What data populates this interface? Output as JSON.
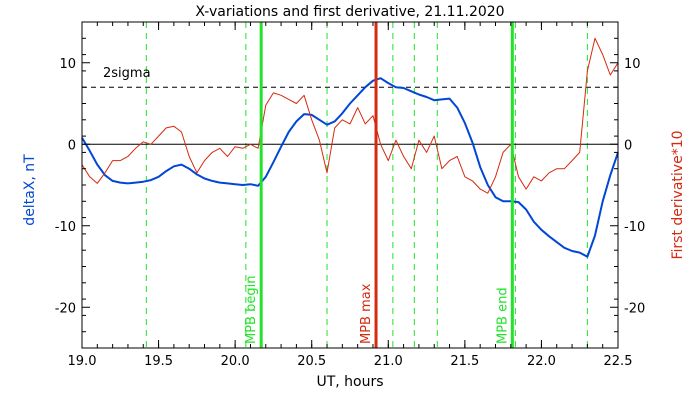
{
  "chart_data": {
    "type": "line",
    "title": "X-variations and first derivative, 21.11.2020",
    "xlabel": "UT, hours",
    "ylabel_left": "deltaX, nT",
    "ylabel_right": "First derivative*10",
    "xlim": [
      19.0,
      22.5
    ],
    "ylim": [
      -25,
      15
    ],
    "xticks": [
      "19.0",
      "19.5",
      "20.0",
      "20.5",
      "21.0",
      "21.5",
      "22.0",
      "22.5"
    ],
    "xtick_values": [
      19.0,
      19.5,
      20.0,
      20.5,
      21.0,
      21.5,
      22.0,
      22.5
    ],
    "yticks_left": [
      "-20",
      "-10",
      "0",
      "10"
    ],
    "yticks_right": [
      "-20",
      "-10",
      "0",
      "10"
    ],
    "ytick_values": [
      -20,
      -10,
      0,
      10
    ],
    "sigma_label": "2sigma",
    "sigma_level": 7,
    "zero_level": 0,
    "colors": {
      "deltaX": "#0047d6",
      "derivative": "#d52a10",
      "green": "#22e22a",
      "red": "#d52a10",
      "axis": "#000000"
    },
    "series": [
      {
        "name": "deltaX, nT",
        "x": [
          19.0,
          19.05,
          19.1,
          19.15,
          19.2,
          19.25,
          19.3,
          19.35,
          19.4,
          19.45,
          19.5,
          19.55,
          19.6,
          19.65,
          19.7,
          19.75,
          19.8,
          19.85,
          19.9,
          19.95,
          20.0,
          20.05,
          20.1,
          20.15,
          20.2,
          20.25,
          20.3,
          20.35,
          20.4,
          20.45,
          20.5,
          20.55,
          20.6,
          20.65,
          20.7,
          20.75,
          20.8,
          20.85,
          20.9,
          20.95,
          21.0,
          21.05,
          21.1,
          21.15,
          21.2,
          21.25,
          21.3,
          21.35,
          21.4,
          21.45,
          21.5,
          21.55,
          21.6,
          21.65,
          21.7,
          21.75,
          21.8,
          21.85,
          21.9,
          21.95,
          22.0,
          22.05,
          22.1,
          22.15,
          22.2,
          22.25,
          22.3,
          22.35,
          22.4,
          22.45,
          22.5
        ],
        "values": [
          0.8,
          -0.8,
          -2.5,
          -3.8,
          -4.5,
          -4.7,
          -4.8,
          -4.7,
          -4.6,
          -4.4,
          -4.0,
          -3.3,
          -2.7,
          -2.5,
          -3.0,
          -3.7,
          -4.2,
          -4.5,
          -4.7,
          -4.8,
          -4.9,
          -5.0,
          -4.9,
          -5.1,
          -4.0,
          -2.2,
          -0.3,
          1.5,
          2.8,
          3.7,
          3.6,
          3.0,
          2.4,
          2.8,
          3.8,
          5.0,
          6.0,
          7.0,
          7.8,
          8.1,
          7.5,
          7.0,
          6.9,
          6.5,
          6.1,
          5.8,
          5.4,
          5.5,
          5.6,
          4.5,
          2.6,
          0.2,
          -2.8,
          -5.0,
          -6.5,
          -7.0,
          -7.0,
          -7.1,
          -8.0,
          -9.5,
          -10.5,
          -11.3,
          -12.0,
          -12.7,
          -13.1,
          -13.3,
          -13.8,
          -11.2,
          -7.0,
          -3.8,
          -1.0
        ]
      },
      {
        "name": "First derivative*10",
        "x": [
          19.0,
          19.05,
          19.1,
          19.15,
          19.2,
          19.25,
          19.3,
          19.35,
          19.4,
          19.45,
          19.5,
          19.55,
          19.6,
          19.65,
          19.7,
          19.75,
          19.8,
          19.85,
          19.9,
          19.95,
          20.0,
          20.05,
          20.1,
          20.15,
          20.2,
          20.25,
          20.3,
          20.35,
          20.4,
          20.45,
          20.5,
          20.55,
          20.6,
          20.65,
          20.7,
          20.75,
          20.8,
          20.85,
          20.9,
          20.95,
          21.0,
          21.05,
          21.1,
          21.15,
          21.2,
          21.25,
          21.3,
          21.35,
          21.4,
          21.45,
          21.5,
          21.55,
          21.6,
          21.65,
          21.7,
          21.75,
          21.8,
          21.85,
          21.9,
          21.95,
          22.0,
          22.05,
          22.1,
          22.15,
          22.2,
          22.25,
          22.3,
          22.35,
          22.4,
          22.45,
          22.5
        ],
        "values": [
          -2.5,
          -4.0,
          -4.8,
          -3.5,
          -2.0,
          -2.0,
          -1.5,
          -0.5,
          0.3,
          0.0,
          1.0,
          2.0,
          2.2,
          1.5,
          -1.5,
          -3.5,
          -2.0,
          -1.0,
          -0.5,
          -1.5,
          -0.3,
          -0.5,
          0.0,
          -0.5,
          4.8,
          6.3,
          6.0,
          5.5,
          5.0,
          6.0,
          3.0,
          0.5,
          -3.5,
          2.0,
          3.0,
          2.5,
          4.5,
          2.5,
          3.5,
          0.0,
          -2.0,
          0.5,
          -1.5,
          -3.0,
          0.5,
          -1.0,
          1.0,
          -3.0,
          -2.0,
          -1.5,
          -4.0,
          -4.5,
          -5.5,
          -6.0,
          -4.0,
          -1.0,
          0.0,
          -4.0,
          -5.5,
          -4.0,
          -4.5,
          -3.5,
          -3.0,
          -3.0,
          -2.0,
          -1.0,
          9.0,
          13.0,
          11.0,
          8.5,
          10.0
        ]
      }
    ],
    "vertical_lines": {
      "dashed_green": [
        19.42,
        20.07,
        20.6,
        21.03,
        21.17,
        21.32,
        21.83,
        22.3
      ],
      "solid": [
        {
          "x": 20.17,
          "label": "MPB begin",
          "color": "green"
        },
        {
          "x": 20.92,
          "label": "MPB max",
          "color": "red"
        },
        {
          "x": 21.81,
          "label": "MPB end",
          "color": "green"
        }
      ]
    }
  }
}
